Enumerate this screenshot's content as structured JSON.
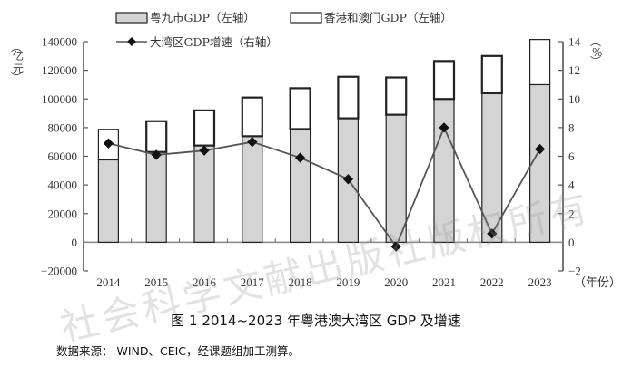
{
  "chart_data": {
    "type": "bar",
    "title": "图 1  2014~2023 年粤港澳大湾区 GDP 及增速",
    "categories": [
      "2014",
      "2015",
      "2016",
      "2017",
      "2018",
      "2019",
      "2020",
      "2021",
      "2022",
      "2023"
    ],
    "xlabel": "（年份）",
    "ylabel_left": "（亿元）",
    "ylabel_right": "（%）",
    "ylim_left": [
      -20000,
      140000
    ],
    "ylim_right": [
      -2,
      14
    ],
    "yticks_left": [
      "140000",
      "120000",
      "100000",
      "80000",
      "60000",
      "40000",
      "20000",
      "0",
      "−20000"
    ],
    "yticks_right": [
      "14",
      "12",
      "10",
      "8",
      "6",
      "4",
      "2",
      "0",
      "−2"
    ],
    "grid": false,
    "legend_position": "top",
    "series": [
      {
        "name": "粤九市GDP（左轴）",
        "kind": "stacked-bar",
        "axis": "left",
        "color": "#d4d4d4",
        "values": [
          57500,
          63000,
          67500,
          74000,
          79000,
          86500,
          89000,
          100000,
          104000,
          110000
        ]
      },
      {
        "name": "香港和澳门GDP（左轴）",
        "kind": "stacked-bar",
        "axis": "left",
        "color": "#ffffff",
        "values": [
          21300,
          21500,
          24500,
          27000,
          28500,
          29000,
          26000,
          26500,
          26000,
          31500
        ]
      },
      {
        "name": "大湾区GDP增速（右轴）",
        "kind": "line",
        "axis": "right",
        "color": "#555555",
        "values": [
          6.9,
          6.1,
          6.4,
          7.0,
          5.9,
          4.4,
          -0.3,
          8.0,
          0.6,
          6.5
        ]
      }
    ]
  },
  "caption": "图 1  2014~2023 年粤港澳大湾区 GDP 及增速",
  "source": "数据来源： WIND、CEIC，经课题组加工测算。",
  "watermark": "社会科学文献出版社版权所有"
}
